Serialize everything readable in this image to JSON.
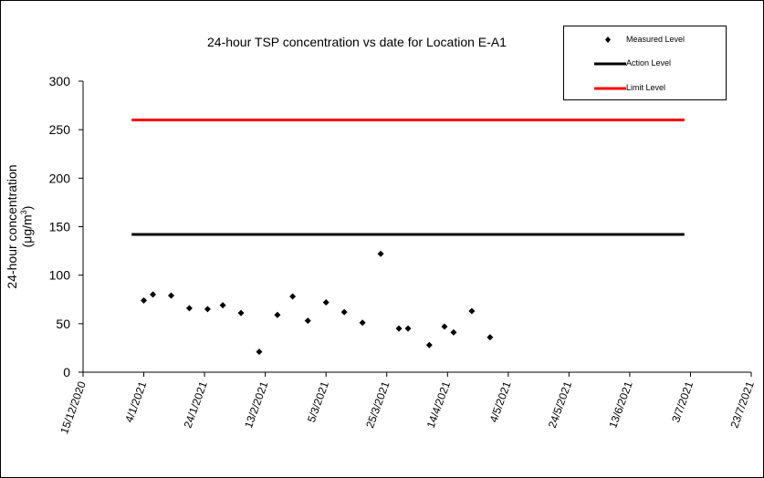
{
  "chart_data": {
    "type": "scatter",
    "title": "24-hour TSP concentration vs date for Location E-A1",
    "ylabel_line1": "24-hour concentration",
    "ylabel_line2": "(μg/m",
    "ylabel_sup": "3",
    "ylabel_close": ")",
    "ylim": [
      0,
      300
    ],
    "yticks": [
      0,
      50,
      100,
      150,
      200,
      250,
      300
    ],
    "xlim": [
      "2020-12-15",
      "2021-07-23"
    ],
    "xticks": [
      {
        "date": "2020-12-15",
        "label": "15/12/2020"
      },
      {
        "date": "2021-01-04",
        "label": "4/1/2021"
      },
      {
        "date": "2021-01-24",
        "label": "24/1/2021"
      },
      {
        "date": "2021-02-13",
        "label": "13/2/2021"
      },
      {
        "date": "2021-03-05",
        "label": "5/3/2021"
      },
      {
        "date": "2021-03-25",
        "label": "25/3/2021"
      },
      {
        "date": "2021-04-14",
        "label": "14/4/2021"
      },
      {
        "date": "2021-05-04",
        "label": "4/5/2021"
      },
      {
        "date": "2021-05-24",
        "label": "24/5/2021"
      },
      {
        "date": "2021-06-13",
        "label": "13/6/2021"
      },
      {
        "date": "2021-07-03",
        "label": "3/7/2021"
      },
      {
        "date": "2021-07-23",
        "label": "23/7/2021"
      }
    ],
    "grid": false,
    "legend_position": "top-right",
    "series": [
      {
        "name": "Measured Level",
        "kind": "markers",
        "color": "#000000",
        "points": [
          {
            "x": "2021-01-04",
            "y": 74
          },
          {
            "x": "2021-01-07",
            "y": 80
          },
          {
            "x": "2021-01-13",
            "y": 79
          },
          {
            "x": "2021-01-19",
            "y": 66
          },
          {
            "x": "2021-01-25",
            "y": 65
          },
          {
            "x": "2021-01-30",
            "y": 69
          },
          {
            "x": "2021-02-05",
            "y": 61
          },
          {
            "x": "2021-02-11",
            "y": 21
          },
          {
            "x": "2021-02-17",
            "y": 59
          },
          {
            "x": "2021-02-22",
            "y": 78
          },
          {
            "x": "2021-02-27",
            "y": 53
          },
          {
            "x": "2021-03-05",
            "y": 72
          },
          {
            "x": "2021-03-11",
            "y": 62
          },
          {
            "x": "2021-03-17",
            "y": 51
          },
          {
            "x": "2021-03-23",
            "y": 122
          },
          {
            "x": "2021-03-29",
            "y": 45
          },
          {
            "x": "2021-04-01",
            "y": 45
          },
          {
            "x": "2021-04-08",
            "y": 28
          },
          {
            "x": "2021-04-13",
            "y": 47
          },
          {
            "x": "2021-04-16",
            "y": 41
          },
          {
            "x": "2021-04-22",
            "y": 63
          },
          {
            "x": "2021-04-28",
            "y": 36
          }
        ]
      },
      {
        "name": "Action Level",
        "kind": "line",
        "color": "#000000",
        "points": [
          {
            "x": "2020-12-31",
            "y": 142
          },
          {
            "x": "2021-07-01",
            "y": 142
          }
        ]
      },
      {
        "name": "Limit Level",
        "kind": "line",
        "color": "#ff0000",
        "points": [
          {
            "x": "2020-12-31",
            "y": 260
          },
          {
            "x": "2021-07-01",
            "y": 260
          }
        ]
      }
    ]
  }
}
